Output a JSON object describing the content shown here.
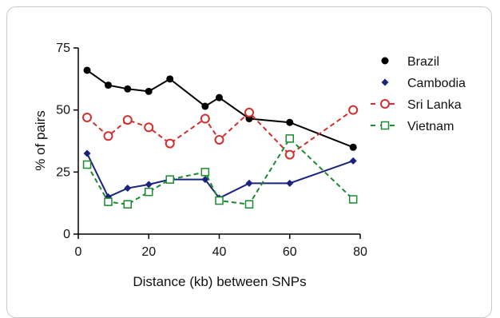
{
  "chart_data": {
    "type": "line",
    "xlabel": "Distance (kb) between SNPs",
    "ylabel": "% of pairs",
    "xlim": [
      0,
      80
    ],
    "ylim": [
      0,
      75
    ],
    "xticks": [
      0,
      20,
      40,
      60,
      80
    ],
    "yticks": [
      0,
      25,
      50,
      75
    ],
    "grid": false,
    "legend_position": "top-right",
    "series": [
      {
        "name": "Brazil",
        "color": "#000000",
        "marker": "filled-circle",
        "line_style": "solid",
        "points": [
          [
            2.5,
            66
          ],
          [
            8.5,
            60
          ],
          [
            14,
            58.5
          ],
          [
            20,
            57.5
          ],
          [
            26,
            62.5
          ],
          [
            36,
            51.5
          ],
          [
            40,
            55
          ],
          [
            48.5,
            46.5
          ],
          [
            60,
            45
          ],
          [
            78,
            35
          ]
        ]
      },
      {
        "name": "Cambodia",
        "color": "#1a237e",
        "marker": "filled-diamond",
        "line_style": "solid",
        "points": [
          [
            2.5,
            32.5
          ],
          [
            8.5,
            15
          ],
          [
            14,
            18.5
          ],
          [
            20,
            20
          ],
          [
            26,
            22
          ],
          [
            36,
            22
          ],
          [
            40,
            14.5
          ],
          [
            48.5,
            20.5
          ],
          [
            60,
            20.5
          ],
          [
            78,
            29.5
          ]
        ]
      },
      {
        "name": "Sri Lanka",
        "color": "#d32f2f",
        "marker": "open-circle",
        "line_style": "dashed",
        "points": [
          [
            2.5,
            47
          ],
          [
            8.5,
            39.5
          ],
          [
            14,
            46
          ],
          [
            20,
            43
          ],
          [
            26,
            36.5
          ],
          [
            36,
            46.5
          ],
          [
            40,
            38
          ],
          [
            48.5,
            49
          ],
          [
            60,
            32
          ],
          [
            78,
            50
          ]
        ]
      },
      {
        "name": "Vietnam",
        "color": "#1b8a2f",
        "marker": "open-square",
        "line_style": "dashed",
        "points": [
          [
            2.5,
            28
          ],
          [
            8.5,
            13
          ],
          [
            14,
            12
          ],
          [
            20,
            17
          ],
          [
            26,
            22
          ],
          [
            36,
            25
          ],
          [
            40,
            13.5
          ],
          [
            48.5,
            12
          ],
          [
            60,
            38.5
          ],
          [
            78,
            14
          ]
        ]
      }
    ]
  }
}
